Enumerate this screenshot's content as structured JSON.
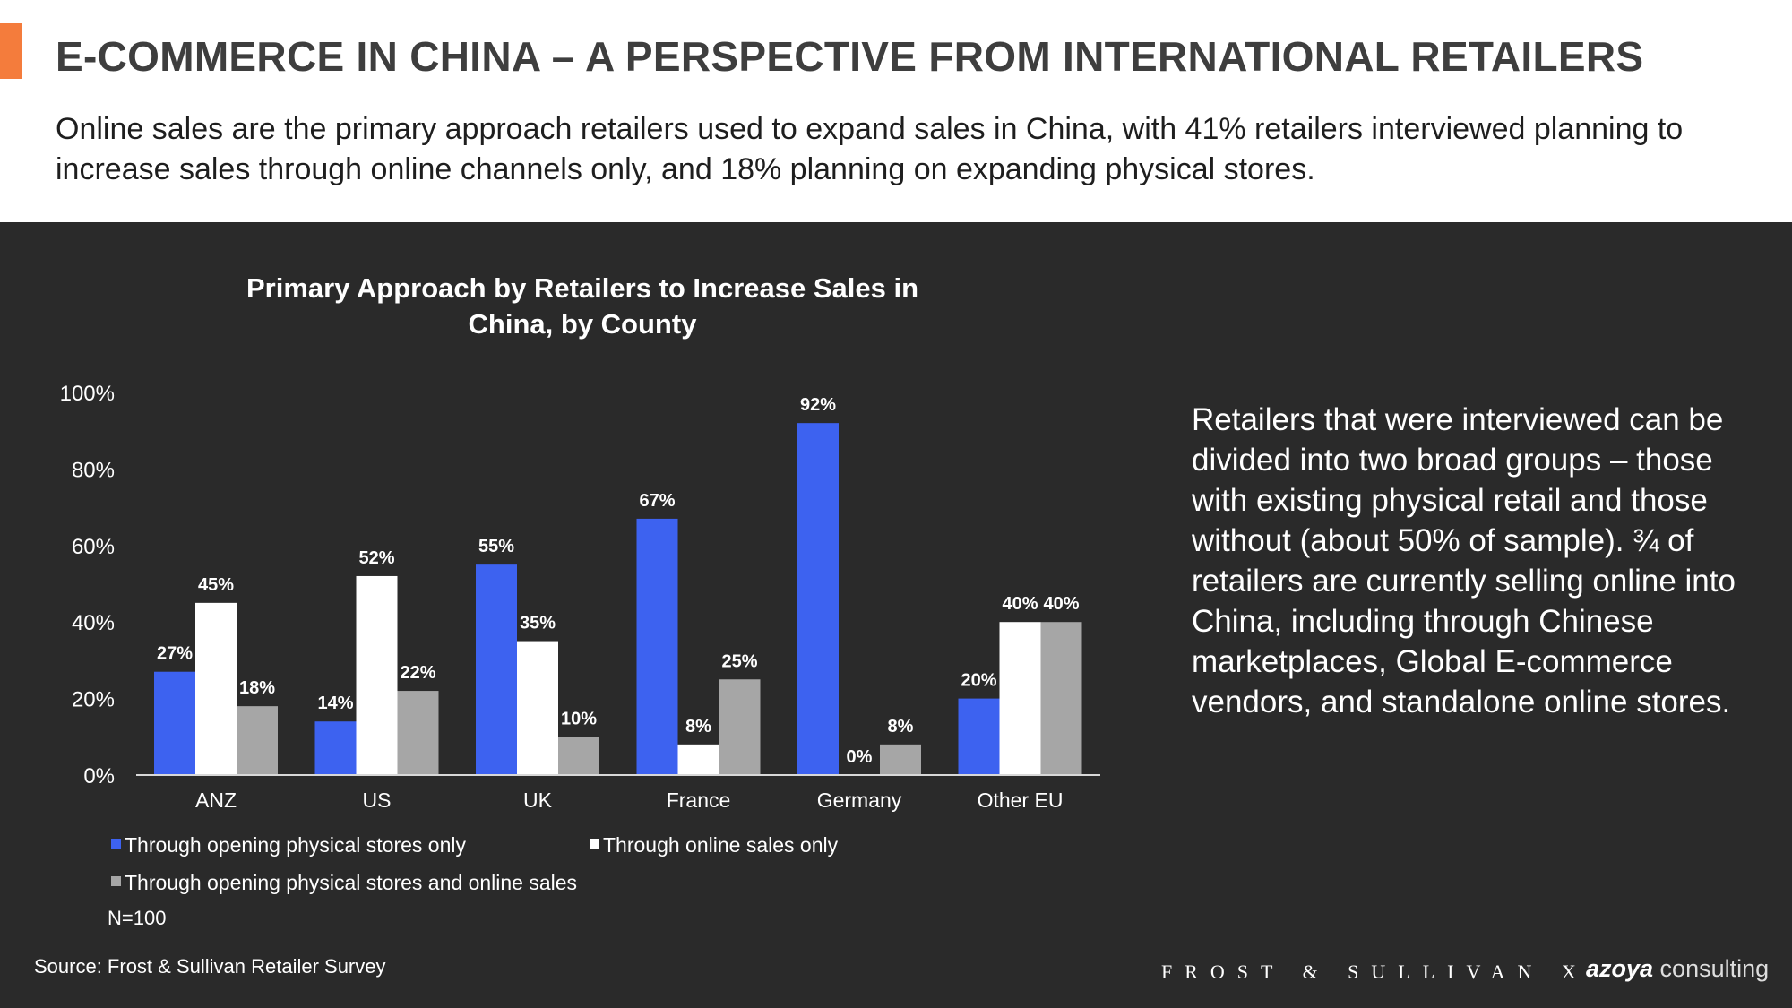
{
  "header": {
    "title": "E-COMMERCE IN CHINA – A PERSPECTIVE FROM INTERNATIONAL RETAILERS",
    "subtitle": "Online sales are the primary approach retailers used to expand sales in China, with 41% retailers interviewed planning to increase sales through online channels only, and 18% planning on expanding physical stores."
  },
  "side_text": "Retailers that were interviewed can be divided into two broad groups – those with existing physical retail and those without (about 50% of sample). ¾ of retailers are currently selling online into China, including through Chinese marketplaces, Global E-commerce vendors, and standalone online stores.",
  "note": "N=100",
  "source": "Source: Frost & Sullivan Retailer Survey",
  "brand": {
    "frost": "FROST & SULLIVAN X",
    "azoya_bold": "azoya",
    "azoya_light": " consulting"
  },
  "colors": {
    "accent": "#f47c3c",
    "series1": "#3d62f0",
    "series2": "#ffffff",
    "series3": "#a6a6a6"
  },
  "chart_data": {
    "type": "bar",
    "title": "Primary Approach by Retailers to Increase Sales in China, by County",
    "categories": [
      "ANZ",
      "US",
      "UK",
      "France",
      "Germany",
      "Other EU"
    ],
    "series": [
      {
        "name": "Through opening physical stores only",
        "values": [
          27,
          14,
          55,
          67,
          92,
          20
        ],
        "labels": [
          "27%",
          "14%",
          "55%",
          "67%",
          "92%",
          "20%"
        ]
      },
      {
        "name": "Through online sales only",
        "values": [
          45,
          52,
          35,
          8,
          0,
          40
        ],
        "labels": [
          "45%",
          "52%",
          "35%",
          "8%",
          "0%",
          "40%"
        ]
      },
      {
        "name": "Through opening physical stores and online sales",
        "values": [
          18,
          22,
          10,
          25,
          8,
          40
        ],
        "labels": [
          "18%",
          "22%",
          "10%",
          "25%",
          "8%",
          "40%"
        ]
      }
    ],
    "yticks": [
      "0%",
      "20%",
      "40%",
      "60%",
      "80%",
      "100%"
    ],
    "ylim": [
      0,
      100
    ],
    "xlabel": "",
    "ylabel": "",
    "grid": false,
    "legend_position": "bottom"
  }
}
